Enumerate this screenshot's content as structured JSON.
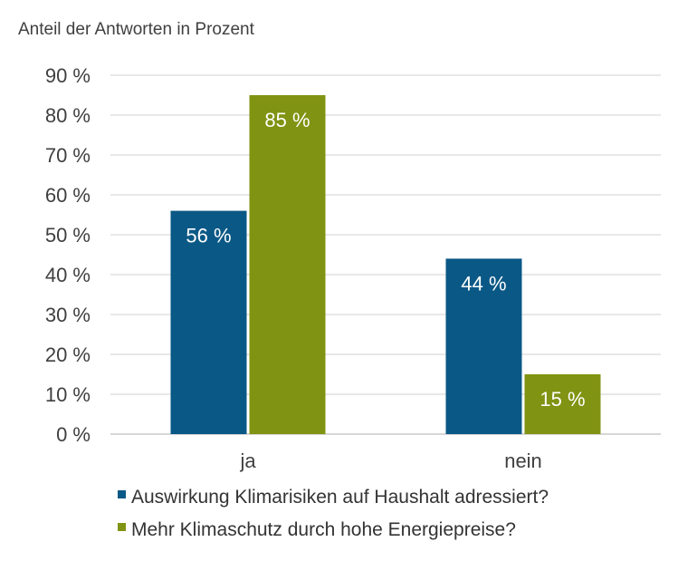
{
  "chart_data": {
    "type": "bar",
    "ylabel": "Anteil der Antworten in Prozent",
    "categories": [
      "ja",
      "nein"
    ],
    "ylim": [
      0,
      90
    ],
    "ytick_step": 10,
    "ytick_suffix": " %",
    "grid": true,
    "legend_position": "bottom",
    "series": [
      {
        "name": "Auswirkung Klimarisiken auf Haushalt adressiert?",
        "values": [
          56,
          44
        ],
        "color": "#0a5886",
        "labels": [
          "56 %",
          "44 %"
        ]
      },
      {
        "name": "Mehr Klimaschutz durch hohe Energiepreise?",
        "values": [
          85,
          15
        ],
        "color": "#819312",
        "labels": [
          "85 %",
          "15 %"
        ]
      }
    ]
  }
}
